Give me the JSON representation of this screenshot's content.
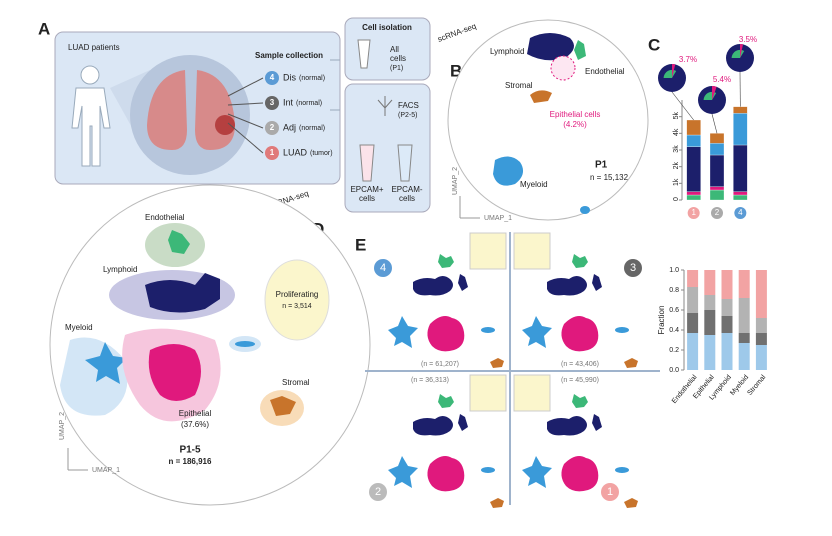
{
  "panel_labels": [
    "A",
    "B",
    "C",
    "D",
    "E"
  ],
  "panel_a": {
    "title": "LUAD patients",
    "sample_title": "Sample collection",
    "samples": [
      {
        "number": "4",
        "name": "Dis",
        "note": "(normal)"
      },
      {
        "number": "3",
        "name": "Int",
        "note": "(normal)"
      },
      {
        "number": "2",
        "name": "Adj",
        "note": "(normal)"
      },
      {
        "number": "1",
        "name": "LUAD",
        "note": "(tumor)"
      }
    ]
  },
  "isolation": {
    "title": "Cell isolation",
    "all_cells": [
      "All",
      "cells",
      "(P1)"
    ],
    "facs": [
      "FACS",
      "(P2-5)"
    ],
    "epcam_pos": [
      "EPCAM+",
      "cells"
    ],
    "epcam_neg": [
      "EPCAM-",
      "cells"
    ],
    "seq_labels": [
      "scRNA-seq",
      "scRNA-seq"
    ]
  },
  "panel_b": {
    "clusters": [
      "Lymphoid",
      "Endothelial",
      "Stromal",
      "Myeloid"
    ],
    "epithelial": [
      "Epithelial cells",
      "(4.2%)"
    ],
    "sample": "P1",
    "n": "n = 15,132",
    "x_axis": "UMAP_1",
    "y_axis": "UMAP_2"
  },
  "panel_d": {
    "clusters": [
      "Endothelial",
      "Lymphoid",
      "Myeloid",
      "Stromal"
    ],
    "proliferating": [
      "Proliferating",
      "n = 3,514"
    ],
    "epithelial": [
      "Epithelial",
      "(37.6%)"
    ],
    "sample": "P1-5",
    "n": "n = 186,916",
    "x_axis": "UMAP_1",
    "y_axis": "UMAP_2"
  },
  "panel_e": {
    "quadrants": [
      {
        "number": "4",
        "n": "(n = 61,207)"
      },
      {
        "number": "3",
        "n": "(n = 43,406)"
      },
      {
        "number": "2",
        "n": "(n = 36,313)"
      },
      {
        "number": "1",
        "n": "(n = 45,990)"
      }
    ]
  },
  "chart_data": [
    {
      "type": "stacked_bar",
      "categories": [
        "1",
        "2",
        "4"
      ],
      "series": [
        {
          "color": "#3cb878",
          "values": [
            300,
            600,
            300
          ]
        },
        {
          "color": "#e0197d",
          "values": [
            200,
            200,
            200
          ]
        },
        {
          "color": "#1c1f6b",
          "values": [
            2700,
            1900,
            2800
          ]
        },
        {
          "color": "#3a9ad9",
          "values": [
            700,
            700,
            1900
          ]
        },
        {
          "color": "#c8742b",
          "values": [
            900,
            600,
            400
          ]
        }
      ],
      "ylim": [
        0,
        6000
      ],
      "yticks": [
        0,
        {
          "value": 1000,
          "label": "1k"
        },
        {
          "value": 2000,
          "label": "2k"
        },
        {
          "value": 3000,
          "label": "3k"
        },
        {
          "value": 4000,
          "label": "4k"
        },
        {
          "value": 5000,
          "label": "5k"
        }
      ],
      "pies": {
        "values": [
          3.7,
          5.4,
          3.5
        ],
        "value_labels": [
          "3.7%",
          "5.4%",
          "3.5%"
        ],
        "color": "#e0197d"
      }
    },
    {
      "type": "stacked_bar",
      "categories": [
        "Endothelial",
        "Epithelial",
        "Lymphoid",
        "Myeloid",
        "Stromal"
      ],
      "series": [
        {
          "color": "#9ec9ea",
          "values": [
            0.37,
            0.35,
            0.37,
            0.27,
            0.25
          ]
        },
        {
          "color": "#707070",
          "values": [
            0.2,
            0.25,
            0.17,
            0.1,
            0.12
          ]
        },
        {
          "color": "#b3b3b3",
          "values": [
            0.26,
            0.15,
            0.17,
            0.35,
            0.15
          ]
        },
        {
          "color": "#f2a3a3",
          "values": [
            0.17,
            0.25,
            0.29,
            0.28,
            0.48
          ]
        }
      ],
      "ylim": [
        0,
        1
      ],
      "yticks": [
        {
          "value": 0,
          "label": "0.0"
        },
        {
          "value": 0.2,
          "label": "0.2"
        },
        {
          "value": 0.4,
          "label": "0.4"
        },
        {
          "value": 0.6,
          "label": "0.6"
        },
        {
          "value": 0.8,
          "label": "0.8"
        },
        {
          "value": 1,
          "label": "1.0"
        }
      ],
      "y_label": "Fraction"
    }
  ]
}
